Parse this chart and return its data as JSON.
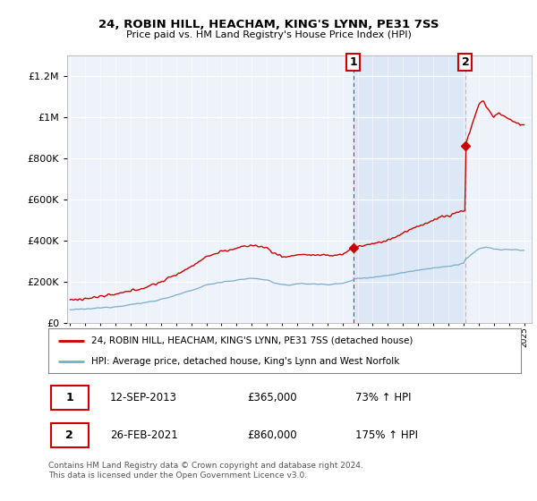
{
  "title": "24, ROBIN HILL, HEACHAM, KING'S LYNN, PE31 7SS",
  "subtitle": "Price paid vs. HM Land Registry's House Price Index (HPI)",
  "legend_line1": "24, ROBIN HILL, HEACHAM, KING'S LYNN, PE31 7SS (detached house)",
  "legend_line2": "HPI: Average price, detached house, King's Lynn and West Norfolk",
  "sale1_date": "12-SEP-2013",
  "sale1_price": "£365,000",
  "sale1_hpi": "73% ↑ HPI",
  "sale2_date": "26-FEB-2021",
  "sale2_price": "£860,000",
  "sale2_hpi": "175% ↑ HPI",
  "footer": "Contains HM Land Registry data © Crown copyright and database right 2024.\nThis data is licensed under the Open Government Licence v3.0.",
  "line_color_red": "#cc0000",
  "line_color_blue": "#7aadcc",
  "sale1_x": 2013.71,
  "sale1_y": 365000,
  "sale2_x": 2021.12,
  "sale2_y": 860000,
  "ylim": [
    0,
    1300000
  ],
  "xlim": [
    1994.8,
    2025.5
  ],
  "background_color": "#ffffff",
  "plot_bg_color": "#eef2fa",
  "shade_color": "#dce8f5"
}
